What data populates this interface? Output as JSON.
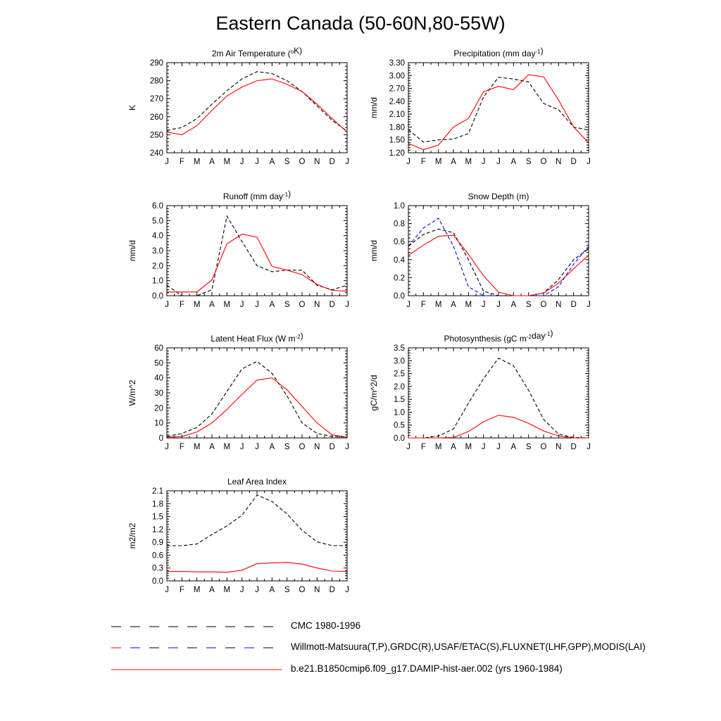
{
  "title": "Eastern Canada (50-60N,80-55W)",
  "colors": {
    "obs": "#000000",
    "obs_alt": "#0000ff",
    "model": "#ff0000"
  },
  "legend": [
    {
      "label": "CMC 1980-1996",
      "colors": [
        "#000000"
      ],
      "dash": true
    },
    {
      "label": "Willmott-Matsuura(T,P),GRDC(R),USAF/ETAC(S),FLUXNET(LHF,GPP),MODIS(LAI)",
      "colors": [
        "#ff0000",
        "#0000ff"
      ],
      "dash": true
    },
    {
      "label": "b.e21.B1850cmip6.f09_g17.DAMIP-hist-aer.002 (yrs 1960-1984)",
      "colors": [
        "#ff0000"
      ],
      "dash": false
    }
  ],
  "chart_data": [
    {
      "type": "line",
      "title": "2m Air Temperature (°K)",
      "title_parts": [
        "2m Air Temperature (",
        {
          "sup": "o"
        },
        "K)"
      ],
      "ylabel": "K",
      "x": [
        "J",
        "F",
        "M",
        "A",
        "M",
        "J",
        "J",
        "A",
        "S",
        "O",
        "N",
        "D",
        "J"
      ],
      "ylim": [
        240,
        290
      ],
      "yticks": [
        "240",
        "250",
        "260",
        "270",
        "280",
        "290"
      ],
      "series": [
        {
          "style": "dash",
          "color": "#000000",
          "values": [
            252.5,
            254,
            259,
            267,
            274.5,
            281,
            285,
            284,
            280,
            274,
            266,
            258,
            252
          ]
        },
        {
          "style": "solid",
          "color": "#ff0000",
          "values": [
            251.5,
            250,
            255,
            263.5,
            271.5,
            276.5,
            280,
            281,
            278,
            274,
            267,
            259,
            251.5
          ]
        }
      ]
    },
    {
      "type": "line",
      "title": "Precipitation (mm day-1)",
      "title_parts": [
        "Precipitation (mm day",
        {
          "sup": "-1"
        },
        ")"
      ],
      "ylabel": "mm/d",
      "x": [
        "J",
        "F",
        "M",
        "A",
        "M",
        "J",
        "J",
        "A",
        "S",
        "O",
        "N",
        "D",
        "J"
      ],
      "ylim": [
        1.2,
        3.3
      ],
      "yticks": [
        "1.20",
        "1.50",
        "1.80",
        "2.10",
        "2.40",
        "2.70",
        "3.00",
        "3.30"
      ],
      "series": [
        {
          "style": "dash",
          "color": "#000000",
          "values": [
            1.74,
            1.45,
            1.5,
            1.52,
            1.65,
            2.5,
            2.96,
            2.92,
            2.85,
            2.35,
            2.2,
            1.8,
            1.73
          ]
        },
        {
          "style": "solid",
          "color": "#ff0000",
          "values": [
            1.42,
            1.27,
            1.38,
            1.8,
            2.0,
            2.62,
            2.75,
            2.67,
            3.02,
            2.97,
            2.43,
            1.8,
            1.43
          ]
        }
      ]
    },
    {
      "type": "line",
      "title": "Runoff (mm day-1)",
      "title_parts": [
        "Runoff (mm day",
        {
          "sup": "-1"
        },
        ")"
      ],
      "ylabel": "mm/d",
      "x": [
        "J",
        "F",
        "M",
        "A",
        "M",
        "J",
        "J",
        "A",
        "S",
        "O",
        "N",
        "D",
        "J"
      ],
      "ylim": [
        0,
        6
      ],
      "yticks": [
        "0.0",
        "1.0",
        "2.0",
        "3.0",
        "4.0",
        "5.0",
        "6.0"
      ],
      "series": [
        {
          "style": "dash",
          "color": "#000000",
          "values": [
            0.7,
            0.0,
            0.0,
            0.4,
            5.3,
            3.6,
            2.0,
            1.6,
            1.7,
            1.7,
            0.7,
            0.4,
            0.7
          ]
        },
        {
          "style": "solid",
          "color": "#ff0000",
          "values": [
            0.25,
            0.25,
            0.25,
            1.05,
            3.45,
            4.1,
            3.9,
            1.95,
            1.7,
            1.4,
            0.75,
            0.35,
            0.3
          ]
        }
      ]
    },
    {
      "type": "line",
      "title": "Snow Depth (m)",
      "title_parts": [
        "Snow Depth (m)"
      ],
      "ylabel": "mm/d",
      "x": [
        "J",
        "F",
        "M",
        "A",
        "M",
        "J",
        "J",
        "A",
        "S",
        "O",
        "N",
        "D",
        "J"
      ],
      "ylim": [
        0,
        1
      ],
      "yticks": [
        "0.0",
        "0.2",
        "0.4",
        "0.6",
        "0.8",
        "1.0"
      ],
      "series": [
        {
          "style": "dash",
          "color": "#0000ff",
          "values": [
            0.55,
            0.75,
            0.86,
            0.55,
            0.1,
            0.0,
            0.0,
            0.0,
            0.0,
            0.0,
            0.1,
            0.35,
            0.55
          ]
        },
        {
          "style": "dash",
          "color": "#000000",
          "values": [
            0.55,
            0.68,
            0.74,
            0.7,
            0.4,
            0.05,
            0.0,
            0.0,
            0.0,
            0.03,
            0.18,
            0.4,
            0.52
          ]
        },
        {
          "style": "solid",
          "color": "#ff0000",
          "values": [
            0.45,
            0.56,
            0.66,
            0.67,
            0.46,
            0.22,
            0.04,
            0.0,
            0.0,
            0.03,
            0.14,
            0.3,
            0.45
          ]
        }
      ]
    },
    {
      "type": "line",
      "title": "Latent Heat Flux (W m-2)",
      "title_parts": [
        "Latent Heat Flux (W m",
        {
          "sup": "-2"
        },
        ")"
      ],
      "ylabel": "W/m^2",
      "x": [
        "J",
        "F",
        "M",
        "A",
        "M",
        "J",
        "J",
        "A",
        "S",
        "O",
        "N",
        "D",
        "J"
      ],
      "ylim": [
        0,
        60
      ],
      "yticks": [
        "0",
        "10",
        "20",
        "30",
        "40",
        "50",
        "60"
      ],
      "series": [
        {
          "style": "dash",
          "color": "#000000",
          "values": [
            1,
            3,
            7,
            16,
            31,
            46,
            51,
            43,
            28,
            10,
            3,
            1,
            0.5
          ]
        },
        {
          "style": "solid",
          "color": "#ff0000",
          "values": [
            0.5,
            1,
            4,
            10,
            19,
            29,
            38.5,
            40,
            32,
            21,
            10,
            2,
            0.5
          ]
        }
      ]
    },
    {
      "type": "line",
      "title": "Photosynthesis (gC m-2day-1)",
      "title_parts": [
        "Photosynthesis (gC m",
        {
          "sup": "-2"
        },
        "day",
        {
          "sup": "-1"
        },
        ")"
      ],
      "ylabel": "gC/m^2/d",
      "x": [
        "J",
        "F",
        "M",
        "A",
        "M",
        "J",
        "J",
        "A",
        "S",
        "O",
        "N",
        "D",
        "J"
      ],
      "ylim": [
        0,
        3.5
      ],
      "yticks": [
        "0.0",
        "0.5",
        "1.0",
        "1.5",
        "2.0",
        "2.5",
        "3.0",
        "3.5"
      ],
      "series": [
        {
          "style": "dash",
          "color": "#000000",
          "values": [
            0.0,
            0.0,
            0.08,
            0.35,
            1.35,
            2.3,
            3.1,
            2.8,
            1.85,
            0.72,
            0.15,
            0.02,
            0.0
          ]
        },
        {
          "style": "solid",
          "color": "#ff0000",
          "values": [
            0.0,
            0.0,
            0.0,
            0.02,
            0.25,
            0.63,
            0.88,
            0.8,
            0.57,
            0.27,
            0.08,
            0.0,
            0.0
          ]
        }
      ]
    },
    {
      "type": "line",
      "title": "Leaf Area Index",
      "title_parts": [
        "Leaf Area Index"
      ],
      "ylabel": "m2/m2",
      "x": [
        "J",
        "F",
        "M",
        "A",
        "M",
        "J",
        "J",
        "A",
        "S",
        "O",
        "N",
        "D",
        "J"
      ],
      "ylim": [
        0,
        2.1
      ],
      "yticks": [
        "0.0",
        "0.3",
        "0.6",
        "0.9",
        "1.2",
        "1.5",
        "1.8",
        "2.1"
      ],
      "series": [
        {
          "style": "dash",
          "color": "#000000",
          "values": [
            0.82,
            0.82,
            0.86,
            1.08,
            1.28,
            1.53,
            2.0,
            1.85,
            1.56,
            1.18,
            0.91,
            0.82,
            0.82
          ]
        },
        {
          "style": "solid",
          "color": "#ff0000",
          "values": [
            0.22,
            0.22,
            0.21,
            0.21,
            0.2,
            0.25,
            0.4,
            0.42,
            0.43,
            0.39,
            0.3,
            0.23,
            0.22
          ]
        }
      ]
    }
  ]
}
